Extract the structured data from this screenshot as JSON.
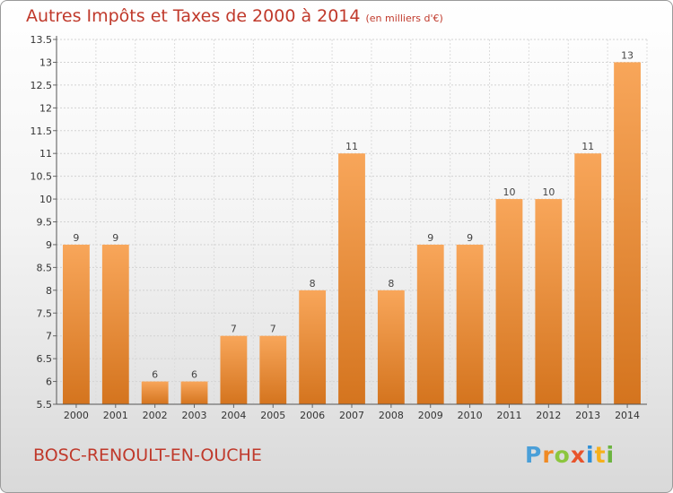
{
  "title": "Autres Impôts et Taxes de 2000 à 2014",
  "unit": "(en milliers d'€)",
  "commune": "BOSC-RENOULT-EN-OUCHE",
  "logo": [
    "P",
    "r",
    "o",
    "x",
    "i",
    "t",
    "i"
  ],
  "colors": {
    "accent": "#c0392b",
    "bar_light": "#f8a65a",
    "bar_dark": "#d4741e",
    "logo": [
      "#4a9fd8",
      "#f08a24",
      "#8cc63e",
      "#e8532b",
      "#2f8fd6",
      "#f6b01b",
      "#6bb43f"
    ]
  },
  "chart_data": {
    "type": "bar",
    "categories": [
      "2000",
      "2001",
      "2002",
      "2003",
      "2004",
      "2005",
      "2006",
      "2007",
      "2008",
      "2009",
      "2010",
      "2011",
      "2012",
      "2013",
      "2014"
    ],
    "values": [
      9,
      9,
      6,
      6,
      7,
      7,
      8,
      11,
      8,
      9,
      9,
      10,
      10,
      11,
      13
    ],
    "value_labels": [
      "9",
      "9",
      "6",
      "6",
      "7",
      "7",
      "8",
      "11",
      "8",
      "9",
      "9",
      "10",
      "10",
      "11",
      "13"
    ],
    "ylim": [
      5.5,
      13.5
    ],
    "y_ticks": [
      5.5,
      6,
      6.5,
      7,
      7.5,
      8,
      8.5,
      9,
      9.5,
      10,
      10.5,
      11,
      11.5,
      12,
      12.5,
      13,
      13.5
    ],
    "y_tick_labels": [
      "5.5",
      "6",
      "6.5",
      "7",
      "7.5",
      "8",
      "8.5",
      "9",
      "9.5",
      "10",
      "10.5",
      "11",
      "11.5",
      "12",
      "12.5",
      "13",
      "13.5"
    ],
    "grid": true,
    "xlabel": "",
    "ylabel": ""
  }
}
